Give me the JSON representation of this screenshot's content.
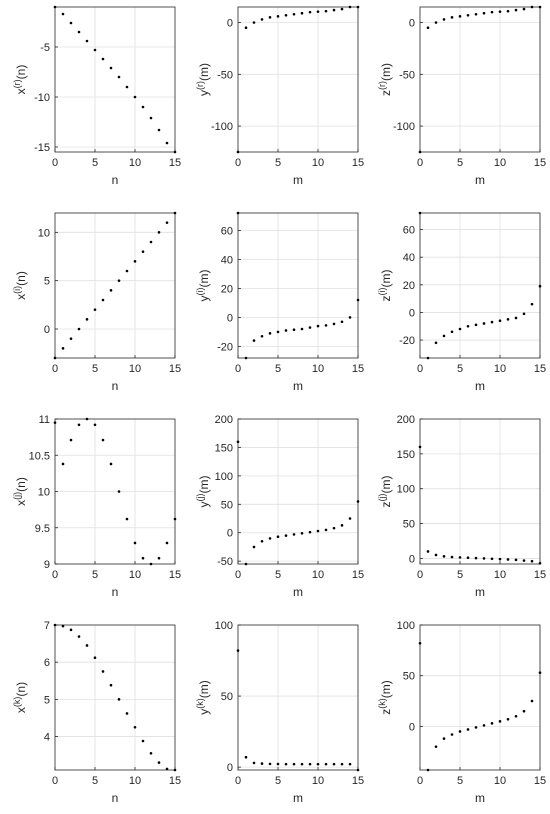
{
  "chart_data": [
    {
      "type": "scatter",
      "xlabel": "n",
      "ylabel": "x^(r)(n)",
      "xlim": [
        0,
        15
      ],
      "ylim": [
        -15.5,
        -1
      ],
      "xticks": [
        0,
        5,
        10,
        15
      ],
      "yticks": [
        -15,
        -10,
        -5
      ],
      "x": [
        0,
        1,
        2,
        3,
        4,
        5,
        6,
        7,
        8,
        9,
        10,
        11,
        12,
        13,
        14,
        15
      ],
      "y": [
        -1,
        -1.7,
        -2.6,
        -3.5,
        -4.4,
        -5.3,
        -6.2,
        -7.1,
        -8.0,
        -9.0,
        -10.0,
        -11.0,
        -12.1,
        -13.3,
        -14.6,
        -15.5
      ]
    },
    {
      "type": "scatter",
      "xlabel": "m",
      "ylabel": "y^(r)(m)",
      "xlim": [
        0,
        15
      ],
      "ylim": [
        -125,
        15
      ],
      "xticks": [
        0,
        5,
        10,
        15
      ],
      "yticks": [
        -100,
        -50,
        0
      ],
      "x": [
        0,
        1,
        2,
        3,
        4,
        5,
        6,
        7,
        8,
        9,
        10,
        11,
        12,
        13,
        14,
        15
      ],
      "y": [
        -125,
        -5,
        0,
        3,
        5,
        6,
        7,
        8,
        9,
        10,
        10.5,
        11,
        12,
        13,
        15,
        15
      ]
    },
    {
      "type": "scatter",
      "xlabel": "m",
      "ylabel": "z^(r)(m)",
      "xlim": [
        0,
        15
      ],
      "ylim": [
        -125,
        15
      ],
      "xticks": [
        0,
        5,
        10,
        15
      ],
      "yticks": [
        -100,
        -50,
        0
      ],
      "x": [
        0,
        1,
        2,
        3,
        4,
        5,
        6,
        7,
        8,
        9,
        10,
        11,
        12,
        13,
        14,
        15
      ],
      "y": [
        -125,
        -5,
        0,
        3,
        5,
        6,
        7,
        8,
        9,
        10,
        10.5,
        11,
        12,
        13,
        15,
        15
      ]
    },
    {
      "type": "scatter",
      "xlabel": "n",
      "ylabel": "x^(i)(n)",
      "xlim": [
        0,
        15
      ],
      "ylim": [
        -3,
        12
      ],
      "xticks": [
        0,
        5,
        10,
        15
      ],
      "yticks": [
        0,
        5,
        10
      ],
      "x": [
        0,
        1,
        2,
        3,
        4,
        5,
        6,
        7,
        8,
        9,
        10,
        11,
        12,
        13,
        14,
        15
      ],
      "y": [
        -3,
        -2,
        -1,
        0,
        1,
        2,
        3,
        4,
        5,
        6,
        7,
        8,
        9,
        10,
        11,
        12
      ]
    },
    {
      "type": "scatter",
      "xlabel": "m",
      "ylabel": "y^(i)(m)",
      "xlim": [
        0,
        15
      ],
      "ylim": [
        -28,
        72
      ],
      "xticks": [
        0,
        5,
        10,
        15
      ],
      "yticks": [
        -20,
        0,
        20,
        40,
        60
      ],
      "x": [
        0,
        1,
        2,
        3,
        4,
        5,
        6,
        7,
        8,
        9,
        10,
        11,
        12,
        13,
        14,
        15
      ],
      "y": [
        72,
        -28,
        -16,
        -13,
        -11,
        -10,
        -9,
        -8.5,
        -8,
        -7,
        -6,
        -5.5,
        -4.5,
        -3,
        0,
        12
      ]
    },
    {
      "type": "scatter",
      "xlabel": "m",
      "ylabel": "z^(i)(m)",
      "xlim": [
        0,
        15
      ],
      "ylim": [
        -33,
        72
      ],
      "xticks": [
        0,
        5,
        10,
        15
      ],
      "yticks": [
        -20,
        0,
        20,
        40,
        60
      ],
      "x": [
        0,
        1,
        2,
        3,
        4,
        5,
        6,
        7,
        8,
        9,
        10,
        11,
        12,
        13,
        14,
        15
      ],
      "y": [
        72,
        -33,
        -22,
        -17,
        -14,
        -12,
        -10,
        -9,
        -8,
        -7,
        -6,
        -5,
        -4,
        -1,
        6,
        19
      ]
    },
    {
      "type": "scatter",
      "xlabel": "n",
      "ylabel": "x^(j)(n)",
      "xlim": [
        0,
        15
      ],
      "ylim": [
        9,
        11
      ],
      "xticks": [
        0,
        5,
        10,
        15
      ],
      "yticks": [
        9,
        9.5,
        10,
        10.5,
        11
      ],
      "x": [
        0,
        1,
        2,
        3,
        4,
        5,
        6,
        7,
        8,
        9,
        10,
        11,
        12,
        13,
        14,
        15
      ],
      "y": [
        10.95,
        10.38,
        10.71,
        10.92,
        11.0,
        10.92,
        10.71,
        10.38,
        10.0,
        9.62,
        9.29,
        9.08,
        9.0,
        9.08,
        9.29,
        9.62
      ]
    },
    {
      "type": "scatter",
      "xlabel": "m",
      "ylabel": "y^(j)(m)",
      "xlim": [
        0,
        15
      ],
      "ylim": [
        -55,
        200
      ],
      "xticks": [
        0,
        5,
        10,
        15
      ],
      "yticks": [
        -50,
        0,
        50,
        100,
        150,
        200
      ],
      "x": [
        0,
        1,
        2,
        3,
        4,
        5,
        6,
        7,
        8,
        9,
        10,
        11,
        12,
        13,
        14,
        15
      ],
      "y": [
        160,
        -55,
        -25,
        -15,
        -10,
        -7,
        -5,
        -3,
        -1,
        1,
        3,
        5,
        8,
        13,
        25,
        55
      ]
    },
    {
      "type": "scatter",
      "xlabel": "m",
      "ylabel": "z^(j)(m)",
      "xlim": [
        0,
        15
      ],
      "ylim": [
        -8,
        200
      ],
      "xticks": [
        0,
        5,
        10,
        15
      ],
      "yticks": [
        0,
        50,
        100,
        150,
        200
      ],
      "x": [
        0,
        1,
        2,
        3,
        4,
        5,
        6,
        7,
        8,
        9,
        10,
        11,
        12,
        13,
        14,
        15
      ],
      "y": [
        160,
        10,
        5,
        3,
        2,
        1.5,
        1,
        0.5,
        0,
        -0.5,
        -1,
        -1.5,
        -2,
        -3,
        -4,
        -7
      ]
    },
    {
      "type": "scatter",
      "xlabel": "n",
      "ylabel": "x^(k)(n)",
      "xlim": [
        0,
        15
      ],
      "ylim": [
        3.1,
        7
      ],
      "xticks": [
        0,
        5,
        10,
        15
      ],
      "yticks": [
        4,
        5,
        6,
        7
      ],
      "x": [
        0,
        1,
        2,
        3,
        4,
        5,
        6,
        7,
        8,
        9,
        10,
        11,
        12,
        13,
        14,
        15
      ],
      "y": [
        7.0,
        6.97,
        6.87,
        6.69,
        6.45,
        6.12,
        5.75,
        5.38,
        5.0,
        4.62,
        4.25,
        3.88,
        3.55,
        3.3,
        3.13,
        3.1
      ]
    },
    {
      "type": "scatter",
      "xlabel": "m",
      "ylabel": "y^(k)(m)",
      "xlim": [
        0,
        15
      ],
      "ylim": [
        -2,
        100
      ],
      "xticks": [
        0,
        5,
        10,
        15
      ],
      "yticks": [
        0,
        50,
        100
      ],
      "x": [
        0,
        1,
        2,
        3,
        4,
        5,
        6,
        7,
        8,
        9,
        10,
        11,
        12,
        13,
        14,
        15
      ],
      "y": [
        82,
        7,
        3,
        2.5,
        2.3,
        2.2,
        2.1,
        2.1,
        2.1,
        2.1,
        2.1,
        2.1,
        2.1,
        2.1,
        2.1,
        -2
      ]
    },
    {
      "type": "scatter",
      "xlabel": "m",
      "ylabel": "z^(k)(m)",
      "xlim": [
        0,
        15
      ],
      "ylim": [
        -43,
        100
      ],
      "xticks": [
        0,
        5,
        10,
        15
      ],
      "yticks": [
        0,
        50,
        100
      ],
      "x": [
        0,
        1,
        2,
        3,
        4,
        5,
        6,
        7,
        8,
        9,
        10,
        11,
        12,
        13,
        14,
        15
      ],
      "y": [
        82,
        -43,
        -20,
        -12,
        -8,
        -5,
        -3,
        -1,
        1,
        3,
        5,
        7,
        10,
        15,
        25,
        53
      ]
    }
  ]
}
